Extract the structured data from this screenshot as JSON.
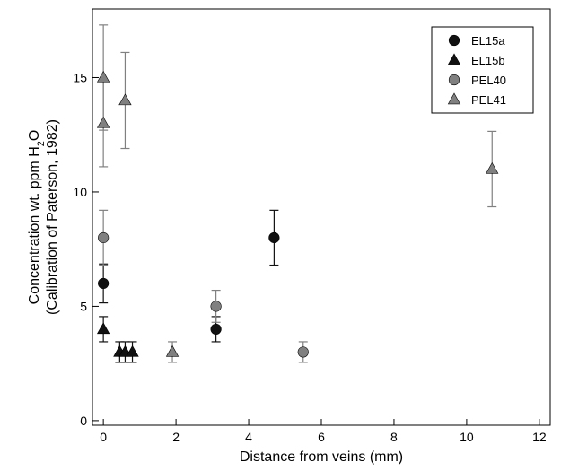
{
  "chart_data": {
    "type": "scatter",
    "xlabel": "Distance from veins (mm)",
    "ylabel": {
      "line1_pre": "Concentration wt. ppm H",
      "line1_sub": "2",
      "line1_post": "O",
      "line2": "(Calibration of Paterson, 1982)"
    },
    "xlim": [
      -0.3,
      12.3
    ],
    "ylim": [
      -0.2,
      18.0
    ],
    "x_ticks": [
      0,
      2,
      4,
      6,
      8,
      10,
      12
    ],
    "y_ticks": [
      0,
      5,
      10,
      15
    ],
    "x_tick_labels": [
      "0",
      "2",
      "4",
      "6",
      "8",
      "10",
      "12"
    ],
    "y_tick_labels": [
      "0",
      "5",
      "10",
      "15"
    ],
    "grid": false,
    "legend_position": "top-right",
    "series": [
      {
        "name": "EL15a",
        "marker": "circle",
        "color": "#111111",
        "points": [
          {
            "x": 0.0,
            "y": 6.0,
            "err": 0.85
          },
          {
            "x": 3.1,
            "y": 4.0,
            "err": 0.55
          },
          {
            "x": 4.7,
            "y": 8.0,
            "err": 1.2
          }
        ]
      },
      {
        "name": "EL15b",
        "marker": "triangle",
        "color": "#111111",
        "points": [
          {
            "x": 0.0,
            "y": 4.0,
            "err": 0.55
          },
          {
            "x": 0.45,
            "y": 3.0,
            "err": 0.45
          },
          {
            "x": 0.6,
            "y": 3.0,
            "err": 0.45
          },
          {
            "x": 0.8,
            "y": 3.0,
            "err": 0.45
          }
        ]
      },
      {
        "name": "PEL40",
        "marker": "circle",
        "color": "#808080",
        "points": [
          {
            "x": 0.0,
            "y": 8.0,
            "err": 1.2
          },
          {
            "x": 3.1,
            "y": 5.0,
            "err": 0.7
          },
          {
            "x": 5.5,
            "y": 3.0,
            "err": 0.45
          }
        ]
      },
      {
        "name": "PEL41",
        "marker": "triangle",
        "color": "#808080",
        "points": [
          {
            "x": 0.0,
            "y": 15.0,
            "err": 2.3
          },
          {
            "x": 0.0,
            "y": 13.0,
            "err": 1.9
          },
          {
            "x": 0.6,
            "y": 14.0,
            "err": 2.1
          },
          {
            "x": 1.9,
            "y": 3.0,
            "err": 0.45
          },
          {
            "x": 10.7,
            "y": 11.0,
            "err": 1.65
          }
        ]
      }
    ]
  }
}
